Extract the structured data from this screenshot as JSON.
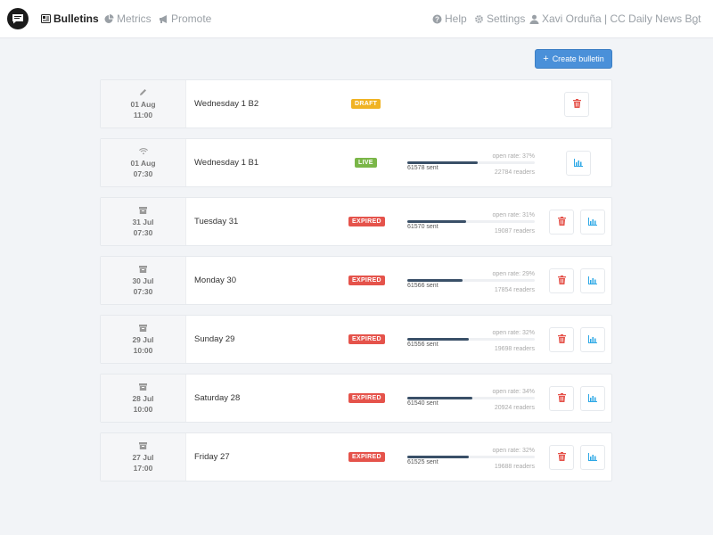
{
  "nav": {
    "logo": "chat-bubble-logo",
    "items": [
      {
        "label": "Bulletins",
        "icon": "newspaper-icon",
        "active": true
      },
      {
        "label": "Metrics",
        "icon": "pie-chart-icon"
      },
      {
        "label": "Promote",
        "icon": "megaphone-icon"
      }
    ],
    "right": [
      {
        "label": "Help",
        "icon": "question-circle-icon"
      },
      {
        "label": "Settings",
        "icon": "gear-icon"
      },
      {
        "label": "Xavi Orduña | CC Daily News Bot",
        "icon": "user-icon"
      }
    ]
  },
  "create_button": {
    "label": "Create bulletin",
    "icon": "plus-icon"
  },
  "colors": {
    "accent": "#4a90d9",
    "draft": "#f0b323",
    "live": "#7ab648",
    "expired": "#e5534b",
    "delete": "#e5534b",
    "stats": "#2ea8e6",
    "bar": "#3a5068"
  },
  "bulletins": [
    {
      "date": "01 Aug",
      "time": "11:00",
      "status_icon": "pencil-icon",
      "title": "Wednesday 1 B2",
      "status": "DRAFT"
    },
    {
      "date": "01 Aug",
      "time": "07:30",
      "status_icon": "wifi-icon",
      "title": "Wednesday 1 B1",
      "status": "LIVE",
      "sent": "61578 sent",
      "sent_fraction": 0.37,
      "open_rate": "open rate: 37%",
      "readers": "22784 readers"
    },
    {
      "date": "31 Jul",
      "time": "07:30",
      "status_icon": "archive-icon",
      "title": "Tuesday 31",
      "status": "EXPIRED",
      "sent": "61570 sent",
      "sent_fraction": 0.31,
      "open_rate": "open rate: 31%",
      "readers": "19087 readers"
    },
    {
      "date": "30 Jul",
      "time": "07:30",
      "status_icon": "archive-icon",
      "title": "Monday 30",
      "status": "EXPIRED",
      "sent": "61566 sent",
      "sent_fraction": 0.29,
      "open_rate": "open rate: 29%",
      "readers": "17854 readers"
    },
    {
      "date": "29 Jul",
      "time": "10:00",
      "status_icon": "archive-icon",
      "title": "Sunday 29",
      "status": "EXPIRED",
      "sent": "61556 sent",
      "sent_fraction": 0.32,
      "open_rate": "open rate: 32%",
      "readers": "19698 readers"
    },
    {
      "date": "28 Jul",
      "time": "10:00",
      "status_icon": "archive-icon",
      "title": "Saturday 28",
      "status": "EXPIRED",
      "sent": "61540 sent",
      "sent_fraction": 0.34,
      "open_rate": "open rate: 34%",
      "readers": "20924 readers"
    },
    {
      "date": "27 Jul",
      "time": "17:00",
      "status_icon": "archive-icon",
      "title": "Friday 27",
      "status": "EXPIRED",
      "sent": "61525 sent",
      "sent_fraction": 0.32,
      "open_rate": "open rate: 32%",
      "readers": "19688 readers"
    }
  ]
}
